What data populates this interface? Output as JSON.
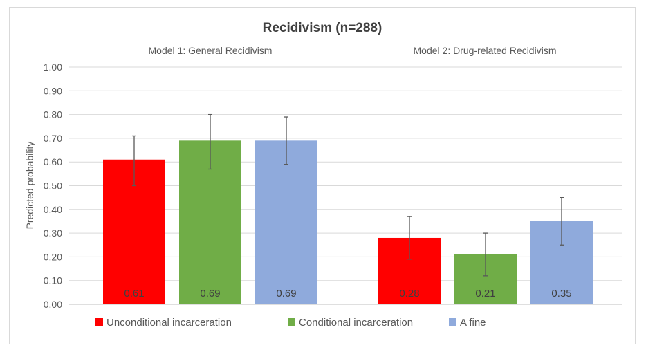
{
  "chart_data": {
    "type": "bar",
    "title": "Recidivism (n=288)",
    "ylabel": "Predicted probability",
    "xlabel": "",
    "ylim": [
      0,
      1
    ],
    "yticks": [
      "0.00",
      "0.10",
      "0.20",
      "0.30",
      "0.40",
      "0.50",
      "0.60",
      "0.70",
      "0.80",
      "0.90",
      "1.00"
    ],
    "grid": true,
    "legend_position": "bottom",
    "categories": [
      "Model 1: General Recidivism",
      "Model 2: Drug-related Recidivism"
    ],
    "series": [
      {
        "name": "Unconditional incarceration",
        "color": "#ff0000",
        "values": [
          0.61,
          0.28
        ],
        "labels": [
          "0.61",
          "0.28"
        ],
        "error_low": [
          0.5,
          0.19
        ],
        "error_high": [
          0.71,
          0.37
        ]
      },
      {
        "name": "Conditional incarceration",
        "color": "#70ad47",
        "values": [
          0.69,
          0.21
        ],
        "labels": [
          "0.69",
          "0.21"
        ],
        "error_low": [
          0.57,
          0.12
        ],
        "error_high": [
          0.8,
          0.3
        ]
      },
      {
        "name": "A fine",
        "color": "#8faadc",
        "values": [
          0.69,
          0.35
        ],
        "labels": [
          "0.69",
          "0.35"
        ],
        "error_low": [
          0.59,
          0.25
        ],
        "error_high": [
          0.79,
          0.45
        ]
      }
    ]
  }
}
